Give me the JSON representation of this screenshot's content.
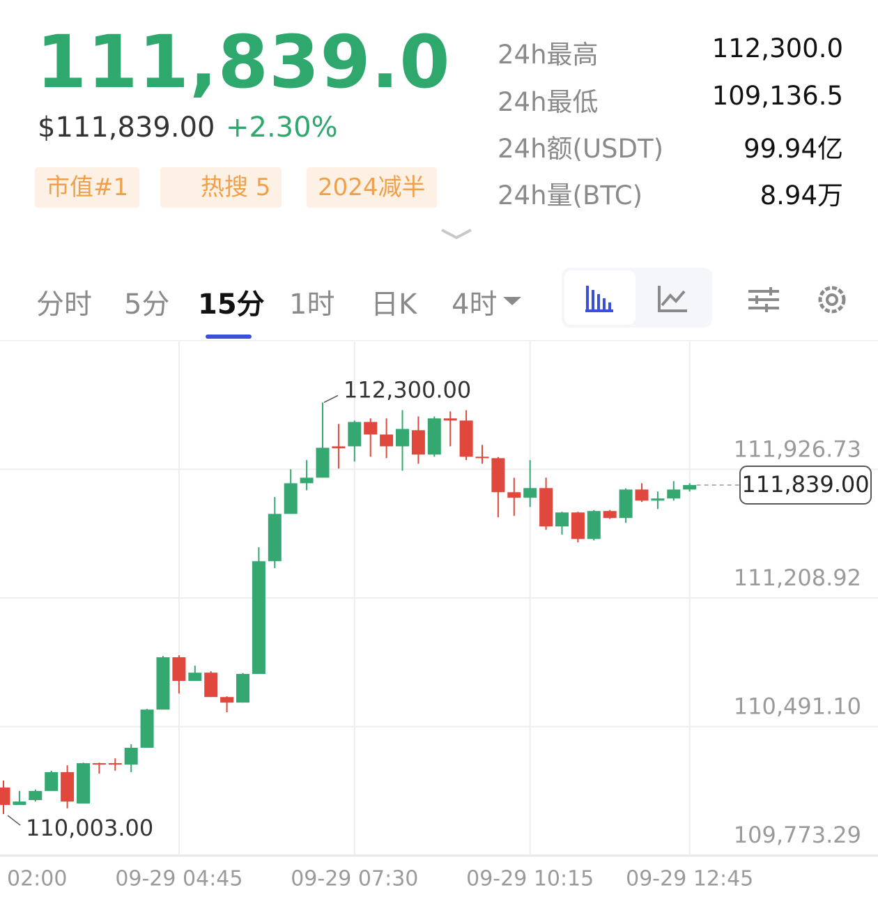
{
  "header": {
    "price": "111,839.0",
    "usd_price": "$111,839.00",
    "change": "+2.30%",
    "tags": [
      "市值#1",
      "热搜 5",
      "2024减半"
    ]
  },
  "stats": [
    {
      "label": "24h最高",
      "value": "112,300.0"
    },
    {
      "label": "24h最低",
      "value": "109,136.5"
    },
    {
      "label": "24h额(USDT)",
      "value": "99.94亿"
    },
    {
      "label": "24h量(BTC)",
      "value": "8.94万"
    }
  ],
  "tabs": [
    "分时",
    "5分",
    "15分",
    "1时",
    "日K",
    "4时"
  ],
  "chart_data": {
    "type": "candlestick",
    "categories": [
      "02:00",
      null,
      null,
      null,
      null,
      null,
      null,
      null,
      null,
      null,
      null,
      "09-29 04:45",
      null,
      null,
      null,
      null,
      null,
      null,
      null,
      null,
      null,
      null,
      "09-29 07:30",
      null,
      null,
      null,
      null,
      null,
      null,
      null,
      null,
      null,
      null,
      "09-29 10:15",
      null,
      null,
      null,
      null,
      null,
      null,
      null,
      null,
      null,
      "09-29 12:45"
    ],
    "open": [
      110151,
      110054,
      110081,
      110132,
      110237,
      110062,
      110287,
      110287,
      110279,
      110373,
      110586,
      110878,
      110746,
      110792,
      110656,
      110625,
      110785,
      111414,
      111678,
      111849,
      111880,
      112055,
      112055,
      112191,
      112121,
      112055,
      112145,
      112009,
      112211,
      112199,
      111997,
      111989,
      111799,
      111768,
      111822,
      111608,
      111686,
      111538,
      111694,
      111655,
      111814,
      111752,
      111764,
      111814
    ],
    "high": [
      110190,
      110132,
      110140,
      110245,
      110275,
      110290,
      110290,
      110314,
      110392,
      110590,
      110885,
      110889,
      110831,
      110800,
      110660,
      110790,
      111492,
      111772,
      111927,
      111978,
      112300,
      112180,
      112199,
      112211,
      112211,
      112257,
      112222,
      112222,
      112250,
      112257,
      112063,
      111995,
      111880,
      111978,
      111880,
      111690,
      111690,
      111700,
      111700,
      111820,
      111849,
      111803,
      111861,
      111849
    ],
    "low": [
      110003,
      110054,
      110073,
      110132,
      110035,
      110062,
      110229,
      110245,
      110237,
      110373,
      110586,
      110676,
      110746,
      110656,
      110571,
      110625,
      110785,
      111375,
      111678,
      111810,
      111880,
      111931,
      111970,
      111997,
      111989,
      111919,
      111958,
      111997,
      112055,
      111978,
      111958,
      111659,
      111667,
      111717,
      111589,
      111562,
      111519,
      111530,
      111650,
      111628,
      111745,
      111705,
      111752,
      111803
    ],
    "close": [
      110054,
      110073,
      110132,
      110237,
      110073,
      110287,
      110279,
      110279,
      110373,
      110586,
      110878,
      110746,
      110792,
      110656,
      110625,
      110785,
      111414,
      111678,
      111849,
      111880,
      112047,
      112044,
      112191,
      112121,
      112055,
      112152,
      112009,
      112211,
      112199,
      111997,
      111989,
      111799,
      111768,
      111822,
      111608,
      111686,
      111538,
      111694,
      111655,
      111814,
      111752,
      111764,
      111814,
      111839
    ],
    "up_color": "#35a872",
    "down_color": "#e0483d",
    "ylim": [
      109770,
      112640
    ],
    "yticks": [
      {
        "value": 111926.73,
        "label": "111,926.73"
      },
      {
        "value": 111208.92,
        "label": "111,208.92"
      },
      {
        "value": 110491.1,
        "label": "110,491.10"
      },
      {
        "value": 109773.29,
        "label": "109,773.29"
      }
    ],
    "grid": true,
    "high_marker": {
      "text": "112,300.00",
      "value": 112300
    },
    "low_marker": {
      "text": "110,003.00",
      "value": 110003
    },
    "last_price": {
      "text": "111,839.00",
      "value": 111839
    }
  }
}
